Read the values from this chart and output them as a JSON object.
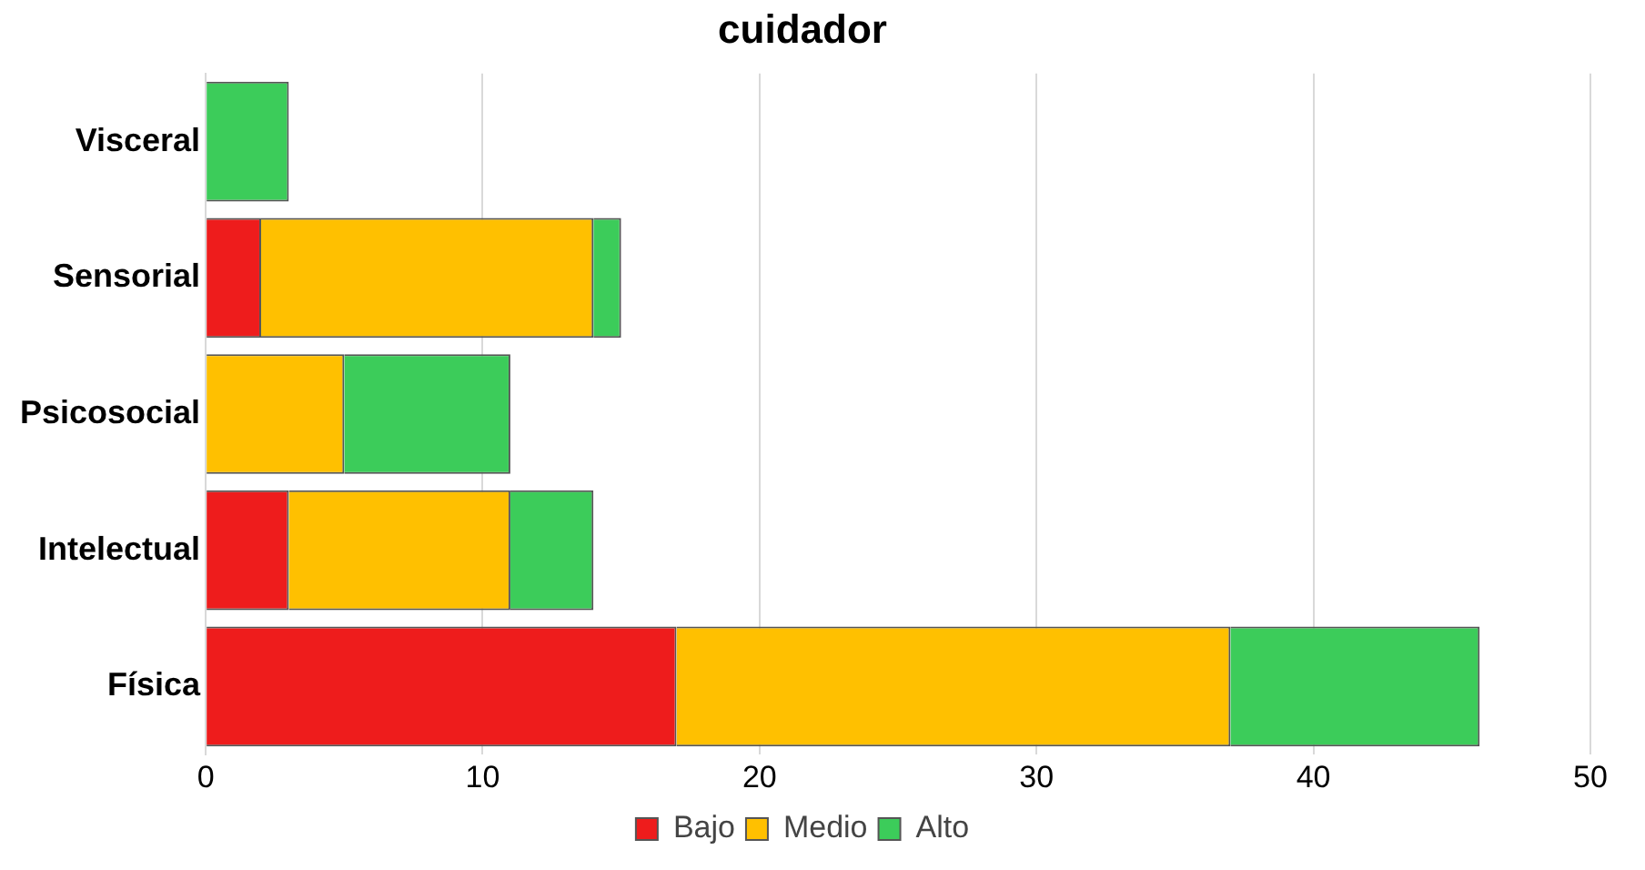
{
  "chart_data": {
    "type": "bar",
    "orientation": "horizontal",
    "stacked": true,
    "title": "cuidador",
    "categories": [
      "Visceral",
      "Sensorial",
      "Psicosocial",
      "Intelectual",
      "Física"
    ],
    "series": [
      {
        "name": "Bajo",
        "color": "#ee1c1c",
        "values": [
          null,
          2,
          null,
          3,
          17
        ]
      },
      {
        "name": "Medio",
        "color": "#ffc000",
        "values": [
          null,
          12,
          5,
          8,
          20
        ]
      },
      {
        "name": "Alto",
        "color": "#3ccc5a",
        "values": [
          3,
          1,
          6,
          3,
          9
        ]
      }
    ],
    "xlim": [
      0,
      50
    ],
    "xticks": [
      0,
      10,
      20,
      30,
      40,
      50
    ],
    "grid": "x",
    "legend": "bottom"
  }
}
